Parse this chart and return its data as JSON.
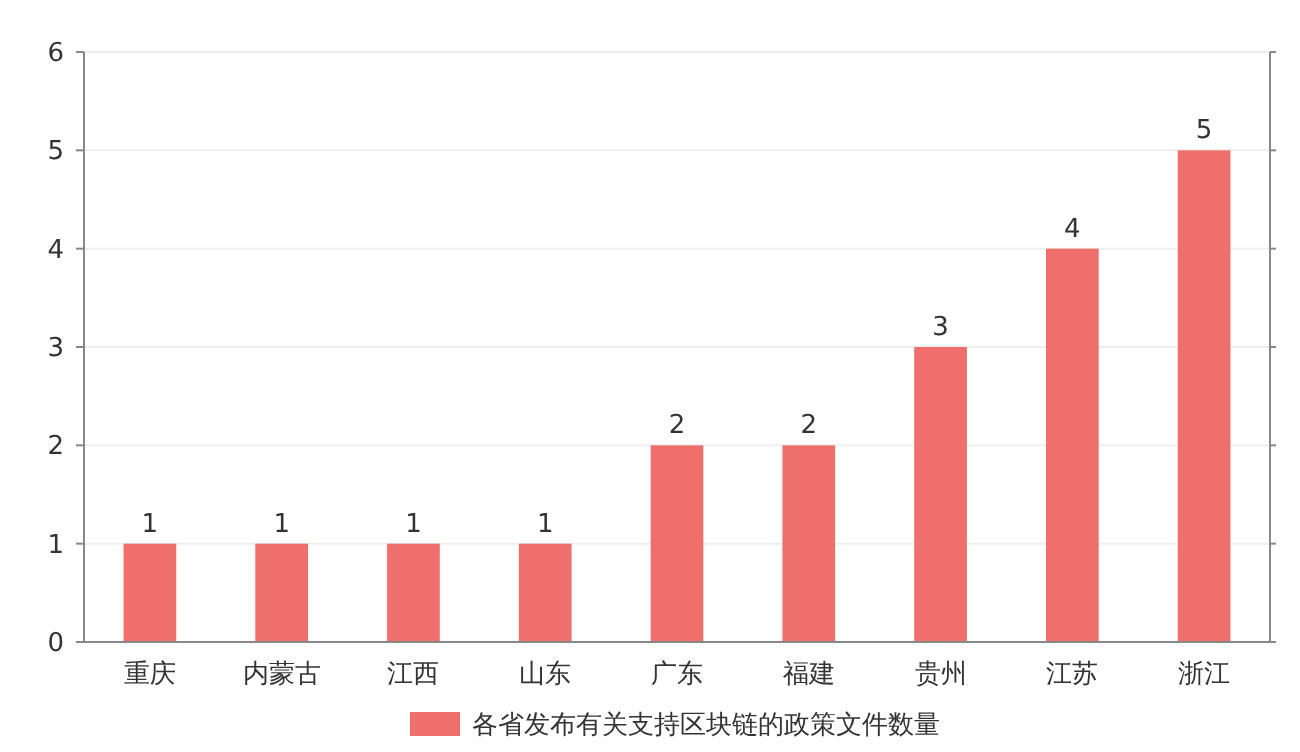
{
  "chart_data": {
    "type": "bar",
    "categories": [
      "重庆",
      "内蒙古",
      "江西",
      "山东",
      "广东",
      "福建",
      "贵州",
      "江苏",
      "浙江"
    ],
    "series": [
      {
        "name": "各省发布有关支持区块链的政策文件数量",
        "color": "#ee6f6b",
        "values": [
          1,
          1,
          1,
          1,
          2,
          2,
          3,
          4,
          5
        ]
      }
    ],
    "ylim": [
      0,
      6
    ],
    "yticks": [
      0,
      1,
      2,
      3,
      4,
      5,
      6
    ],
    "grid": "y",
    "data_labels": true,
    "legend": "bottom"
  }
}
